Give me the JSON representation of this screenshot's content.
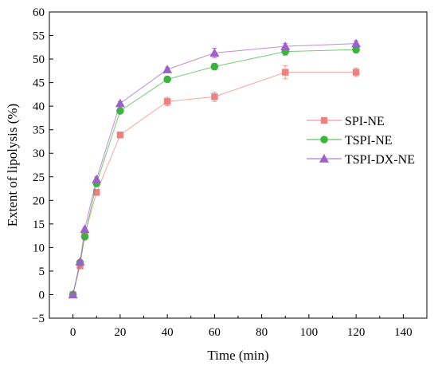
{
  "chart_data": {
    "type": "line",
    "title": "",
    "xlabel": "Time (min)",
    "ylabel": "Extent of lipolysis (%)",
    "xlim": [
      -10,
      150
    ],
    "ylim": [
      -5,
      60
    ],
    "x_ticks": [
      0,
      20,
      40,
      60,
      80,
      100,
      120,
      140
    ],
    "y_ticks": [
      -5,
      0,
      5,
      10,
      15,
      20,
      25,
      30,
      35,
      40,
      45,
      50,
      55,
      60
    ],
    "x_tick_labels": [
      "0",
      "20",
      "40",
      "60",
      "80",
      "100",
      "120",
      "140"
    ],
    "y_tick_labels": [
      "−5",
      "0",
      "5",
      "10",
      "15",
      "20",
      "25",
      "30",
      "35",
      "40",
      "45",
      "50",
      "55",
      "60"
    ],
    "grid": false,
    "legend_position": "center-right",
    "x": [
      0,
      3,
      5,
      10,
      20,
      40,
      60,
      90,
      120
    ],
    "series": [
      {
        "name": "SPI-NE",
        "marker": "square",
        "color": "#f08080",
        "values": [
          0,
          6.1,
          12.8,
          21.7,
          33.9,
          41.0,
          42.0,
          47.2,
          47.2
        ],
        "errors": [
          0.3,
          0.4,
          0.5,
          0.5,
          0.5,
          0.9,
          1.0,
          1.4,
          0.9
        ]
      },
      {
        "name": "TSPI-NE",
        "marker": "circle",
        "color": "#3cb43c",
        "values": [
          0,
          6.8,
          12.3,
          23.6,
          39.0,
          45.7,
          48.4,
          51.6,
          52.0
        ],
        "errors": [
          0.3,
          0.3,
          0.4,
          0.5,
          0.4,
          0.5,
          0.7,
          0.8,
          0.7
        ]
      },
      {
        "name": "TSPI-DX-NE",
        "marker": "triangle",
        "color": "#9d5fc8",
        "values": [
          0,
          7.0,
          13.9,
          24.5,
          40.6,
          47.8,
          51.3,
          52.7,
          53.3
        ],
        "errors": [
          0.3,
          0.3,
          0.4,
          0.5,
          0.4,
          0.5,
          1.0,
          0.6,
          0.6
        ]
      }
    ]
  }
}
